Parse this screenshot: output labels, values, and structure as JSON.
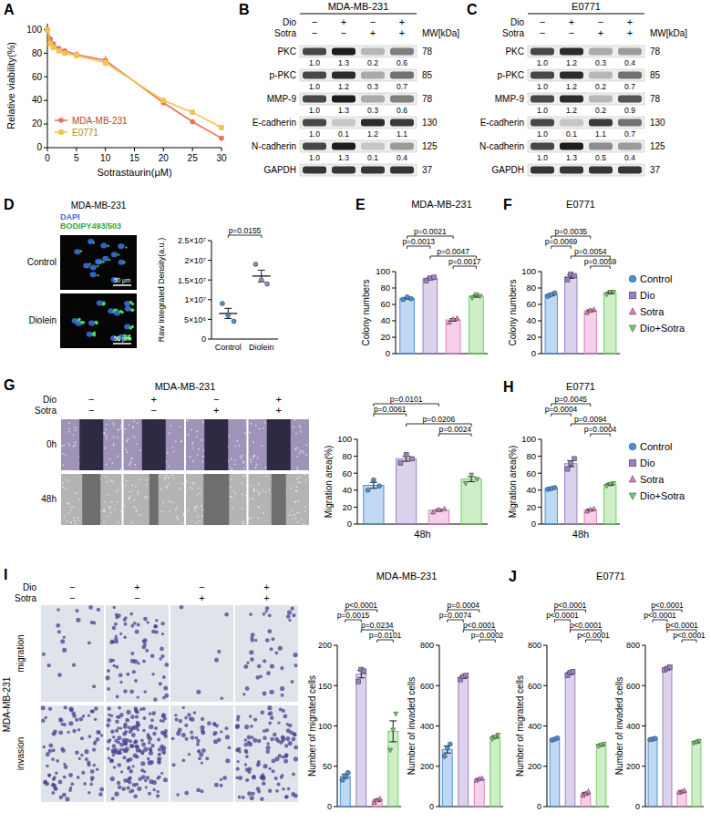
{
  "legend_entries": [
    {
      "name": "Control",
      "color": "#4a90d9",
      "marker": "circle"
    },
    {
      "name": "Dio",
      "color": "#9b7fc6",
      "marker": "square"
    },
    {
      "name": "Sotra",
      "color": "#e07ac0",
      "marker": "triangle"
    },
    {
      "name": "Dio+Sotra",
      "color": "#6fcf5e",
      "marker": "triangle-down"
    }
  ],
  "chart_data": [
    {
      "type": "line",
      "panel": "A",
      "xlabel": "Sotrastaurin(μM)",
      "ylabel": "Relative viability(%)",
      "xlim": [
        0,
        30
      ],
      "ylim": [
        0,
        105
      ],
      "xticks": [
        0,
        5,
        10,
        15,
        20,
        25,
        30
      ],
      "yticks": [
        0,
        20,
        40,
        60,
        80,
        100
      ],
      "legend": "lower left",
      "x": [
        0,
        0.5,
        1,
        2,
        3,
        5,
        10,
        20,
        25,
        30
      ],
      "series": [
        {
          "name": "MDA-MB-231",
          "color": "#e8735a",
          "marker": "circle",
          "values": [
            100,
            92,
            88,
            84,
            82,
            79,
            74,
            38,
            22,
            8
          ],
          "errors": [
            1,
            2,
            2,
            2,
            2,
            3,
            4,
            2,
            2,
            1
          ]
        },
        {
          "name": "E0771",
          "color": "#f2c14e",
          "marker": "square",
          "values": [
            100,
            88,
            85,
            82,
            80,
            78,
            72,
            40,
            30,
            17
          ],
          "errors": [
            1,
            3,
            3,
            2,
            2,
            3,
            4,
            2,
            2,
            1
          ]
        }
      ]
    },
    {
      "type": "dot",
      "marker": "circle",
      "ylabel": "Raw Integrated Density(a.u.)",
      "categories": [
        "Control",
        "Diolein"
      ],
      "colors": [
        "#4a90d9",
        "#9b7fc6"
      ],
      "values": [
        6500000,
        16000000
      ],
      "errors": [
        1300000,
        1500000
      ],
      "points": [
        [
          9000000,
          6000000,
          4500000
        ],
        [
          19000000,
          15000000,
          14000000
        ]
      ],
      "ylim": [
        0,
        25000000
      ],
      "yticks": [
        0,
        {
          "value": 5000000,
          "label": "5×10⁶"
        },
        {
          "value": 10000000,
          "label": "1×10⁷"
        },
        {
          "value": 15000000,
          "label": "1.5×10⁷"
        },
        {
          "value": 20000000,
          "label": "2×10⁷"
        },
        {
          "value": 25000000,
          "label": "2.5×10⁷"
        }
      ],
      "comparisons": [
        {
          "pair": [
            0,
            1
          ],
          "label": "p=0.0155"
        }
      ]
    },
    {
      "type": "bar",
      "panel": "E",
      "title": "MDA-MB-231",
      "ylabel": "Colony numbers",
      "tick_labels": "y",
      "categories": [
        null,
        null,
        null,
        null
      ],
      "colors": [
        "#4a90d9",
        "#9b7fc6",
        "#e07ac0",
        "#6fcf5e"
      ],
      "values": [
        67.3,
        91.3,
        41,
        70
      ],
      "errors": [
        0.9,
        1.2,
        1.5,
        1.2
      ],
      "points": [
        [
          66,
          69,
          67
        ],
        [
          89,
          92,
          93
        ],
        [
          38,
          42,
          43
        ],
        [
          68,
          72,
          70
        ]
      ],
      "ylim": [
        0,
        100
      ],
      "yticks": [
        0,
        20,
        40,
        60,
        80,
        100
      ],
      "comparisons": [
        {
          "pair": [
            0,
            2
          ],
          "label": "p=0.0021"
        },
        {
          "pair": [
            0,
            1
          ],
          "label": "p=0.0013"
        },
        {
          "pair": [
            1,
            3
          ],
          "label": "p=0.0047"
        },
        {
          "pair": [
            2,
            3
          ],
          "label": "p=0.0017"
        }
      ]
    },
    {
      "type": "bar",
      "panel": "F",
      "title": "E0771",
      "ylabel": "Colony numbers",
      "tick_labels": "y",
      "legend": "right",
      "categories": [
        null,
        null,
        null,
        null
      ],
      "colors": [
        "#4a90d9",
        "#9b7fc6",
        "#e07ac0",
        "#6fcf5e"
      ],
      "values": [
        72,
        94,
        52.3,
        74
      ],
      "errors": [
        1.2,
        2.1,
        1.2,
        1
      ],
      "points": [
        [
          70,
          72,
          74
        ],
        [
          90,
          97,
          95
        ],
        [
          50,
          53,
          54
        ],
        [
          72,
          75,
          75
        ]
      ],
      "ylim": [
        0,
        100
      ],
      "yticks": [
        0,
        20,
        40,
        60,
        80,
        100
      ],
      "comparisons": [
        {
          "pair": [
            0,
            2
          ],
          "label": "p=0.0035"
        },
        {
          "pair": [
            0,
            1
          ],
          "label": "p=0.0069"
        },
        {
          "pair": [
            1,
            3
          ],
          "label": "p=0.0054"
        },
        {
          "pair": [
            2,
            3
          ],
          "label": "p=0.0059"
        }
      ]
    },
    {
      "type": "bar",
      "ylabel": "Migration area(%)",
      "xlabel": "48h",
      "tick_labels": "y",
      "categories": [
        null,
        null,
        null,
        null
      ],
      "colors": [
        "#4a90d9",
        "#9b7fc6",
        "#e07ac0",
        "#6fcf5e"
      ],
      "values": [
        45.7,
        77,
        16.3,
        53
      ],
      "errors": [
        3.5,
        2.9,
        1.2,
        2.9
      ],
      "points": [
        [
          40,
          52,
          45
        ],
        [
          72,
          82,
          77
        ],
        [
          14,
          17,
          18
        ],
        [
          48,
          58,
          53
        ]
      ],
      "ylim": [
        0,
        100
      ],
      "yticks": [
        0,
        20,
        40,
        60,
        80,
        100
      ],
      "comparisons": [
        {
          "pair": [
            0,
            2
          ],
          "label": "p=0.0101"
        },
        {
          "pair": [
            0,
            1
          ],
          "label": "p=0.0061"
        },
        {
          "pair": [
            1,
            3
          ],
          "label": "p=0.0206"
        },
        {
          "pair": [
            2,
            3
          ],
          "label": "p=0.0024"
        }
      ]
    },
    {
      "type": "bar",
      "panel": "H",
      "title": "E0771",
      "ylabel": "Migration area(%)",
      "xlabel": "48h",
      "tick_labels": "y",
      "legend": "right",
      "categories": [
        null,
        null,
        null,
        null
      ],
      "colors": [
        "#4a90d9",
        "#9b7fc6",
        "#e07ac0",
        "#6fcf5e"
      ],
      "values": [
        42,
        71.3,
        16.7,
        46.7
      ],
      "errors": [
        0.6,
        3.5,
        0.9,
        0.9
      ],
      "points": [
        [
          41,
          42,
          43
        ],
        [
          65,
          72,
          77
        ],
        [
          15,
          17,
          18
        ],
        [
          45,
          47,
          48
        ]
      ],
      "ylim": [
        0,
        100
      ],
      "yticks": [
        0,
        20,
        40,
        60,
        80,
        100
      ],
      "comparisons": [
        {
          "pair": [
            0,
            2
          ],
          "label": "p=0.0045"
        },
        {
          "pair": [
            0,
            1
          ],
          "label": "p=0.0004"
        },
        {
          "pair": [
            1,
            3
          ],
          "label": "p=0.0094"
        },
        {
          "pair": [
            2,
            3
          ],
          "label": "p=0.0004"
        }
      ]
    },
    {
      "type": "bar",
      "title": "MDA-MB-231",
      "ylabel": "Number of migrated cells",
      "tick_labels": "y",
      "categories": [
        null,
        null,
        null,
        null
      ],
      "colors": [
        "#4a90d9",
        "#9b7fc6",
        "#e07ac0",
        "#6fcf5e"
      ],
      "values": [
        37.7,
        164.3,
        7.7,
        93.3
      ],
      "errors": [
        2.6,
        4.7,
        1.5,
        13
      ],
      "points": [
        [
          33,
          38,
          42
        ],
        [
          155,
          170,
          168
        ],
        [
          5,
          8,
          10
        ],
        [
          70,
          95,
          115
        ]
      ],
      "ylim": [
        0,
        200
      ],
      "yticks": [
        0,
        50,
        100,
        150,
        200
      ],
      "comparisons": [
        {
          "pair": [
            0,
            2
          ],
          "label": "p<0.0001"
        },
        {
          "pair": [
            0,
            1
          ],
          "label": "p=0.0015"
        },
        {
          "pair": [
            1,
            3
          ],
          "label": "p=0.0234"
        },
        {
          "pair": [
            2,
            3
          ],
          "label": "p=0.0101"
        }
      ]
    },
    {
      "type": "bar",
      "ylabel": "Number of invaded cells",
      "tick_labels": "y",
      "categories": [
        null,
        null,
        null,
        null
      ],
      "colors": [
        "#4a90d9",
        "#9b7fc6",
        "#e07ac0",
        "#6fcf5e"
      ],
      "values": [
        283.3,
        641.7,
        136,
        345
      ],
      "errors": [
        17.6,
        6,
        3,
        5.8
      ],
      "points": [
        [
          250,
          290,
          310
        ],
        [
          630,
          645,
          650
        ],
        [
          130,
          138,
          140
        ],
        [
          335,
          345,
          355
        ]
      ],
      "ylim": [
        0,
        800
      ],
      "yticks": [
        0,
        200,
        400,
        600,
        800
      ],
      "comparisons": [
        {
          "pair": [
            0,
            2
          ],
          "label": "p=0.0004"
        },
        {
          "pair": [
            0,
            1
          ],
          "label": "p=0.0074"
        },
        {
          "pair": [
            1,
            3
          ],
          "label": "p<0.0001"
        },
        {
          "pair": [
            2,
            3
          ],
          "label": "p=0.0002"
        }
      ]
    },
    {
      "type": "bar",
      "panel": "J",
      "title": "E0771",
      "ylabel": "Number of migrated cells",
      "tick_labels": "y",
      "categories": [
        null,
        null,
        null,
        null
      ],
      "colors": [
        "#4a90d9",
        "#9b7fc6",
        "#e07ac0",
        "#6fcf5e"
      ],
      "values": [
        335,
        661.7,
        65,
        305
      ],
      "errors": [
        2.9,
        6,
        5.8,
        2.9
      ],
      "points": [
        [
          330,
          335,
          340
        ],
        [
          650,
          665,
          670
        ],
        [
          55,
          65,
          75
        ],
        [
          300,
          305,
          310
        ]
      ],
      "ylim": [
        0,
        800
      ],
      "yticks": [
        0,
        200,
        400,
        600,
        800
      ],
      "comparisons": [
        {
          "pair": [
            0,
            2
          ],
          "label": "p<0.0001"
        },
        {
          "pair": [
            0,
            1
          ],
          "label": "p<0.0001"
        },
        {
          "pair": [
            1,
            3
          ],
          "label": "p<0.0001"
        },
        {
          "pair": [
            2,
            3
          ],
          "label": "p<0.0001"
        }
      ]
    },
    {
      "type": "bar",
      "ylabel": "Number of invaded cells",
      "tick_labels": "y",
      "categories": [
        null,
        null,
        null,
        null
      ],
      "colors": [
        "#4a90d9",
        "#9b7fc6",
        "#e07ac0",
        "#6fcf5e"
      ],
      "values": [
        335,
        685,
        75,
        320
      ],
      "errors": [
        1.7,
        4,
        2.9,
        2.9
      ],
      "points": [
        [
          332,
          335,
          338
        ],
        [
          678,
          685,
          692
        ],
        [
          70,
          75,
          80
        ],
        [
          315,
          320,
          325
        ]
      ],
      "ylim": [
        0,
        800
      ],
      "yticks": [
        0,
        200,
        400,
        600,
        800
      ],
      "comparisons": [
        {
          "pair": [
            0,
            2
          ],
          "label": "p<0.0001"
        },
        {
          "pair": [
            0,
            1
          ],
          "label": "p<0.0001"
        },
        {
          "pair": [
            1,
            3
          ],
          "label": "p<0.0001"
        },
        {
          "pair": [
            2,
            3
          ],
          "label": "p<0.0001"
        }
      ]
    }
  ],
  "blots": [
    {
      "panel": "B",
      "title": "MDA-MB-231",
      "mw_label": "MW[kDa]",
      "treatments": [
        {
          "name": "Dio",
          "signs": [
            "−",
            "+",
            "−",
            "+"
          ]
        },
        {
          "name": "Sotra",
          "signs": [
            "−",
            "−",
            "+",
            "+"
          ]
        }
      ],
      "rows": [
        {
          "protein": "PKC",
          "mw": 78,
          "values": [
            1.0,
            1.3,
            0.2,
            0.6
          ],
          "value_labels": [
            "1.0",
            "1.3",
            "0.2",
            "0.6"
          ]
        },
        {
          "protein": "p-PKC",
          "mw": 85,
          "values": [
            1.0,
            1.2,
            0.3,
            0.7
          ],
          "value_labels": [
            "1.0",
            "1.2",
            "0.3",
            "0.7"
          ]
        },
        {
          "protein": "MMP-9",
          "mw": 78,
          "values": [
            1.0,
            1.3,
            0.3,
            0.6
          ],
          "value_labels": [
            "1.0",
            "1.3",
            "0.3",
            "0.6"
          ]
        },
        {
          "protein": "E-cadherin",
          "mw": 130,
          "values": [
            1.0,
            0.1,
            1.2,
            1.1
          ],
          "value_labels": [
            "1.0",
            "0.1",
            "1.2",
            "1.1"
          ]
        },
        {
          "protein": "N-cadherin",
          "mw": 125,
          "values": [
            1.0,
            1.3,
            0.1,
            0.4
          ],
          "value_labels": [
            "1.0",
            "1.3",
            "0.1",
            "0.4"
          ]
        },
        {
          "protein": "GAPDH",
          "mw": 37
        }
      ]
    },
    {
      "panel": "C",
      "title": "E0771",
      "mw_label": "MW[kDa]",
      "treatments": [
        {
          "name": "Dio",
          "signs": [
            "−",
            "+",
            "−",
            "+"
          ]
        },
        {
          "name": "Sotra",
          "signs": [
            "−",
            "−",
            "+",
            "+"
          ]
        }
      ],
      "rows": [
        {
          "protein": "PKC",
          "mw": 78,
          "values": [
            1.0,
            1.2,
            0.3,
            0.4
          ],
          "value_labels": [
            "1.0",
            "1.2",
            "0.3",
            "0.4"
          ]
        },
        {
          "protein": "p-PKC",
          "mw": 85,
          "values": [
            1.0,
            1.2,
            0.2,
            0.7
          ],
          "value_labels": [
            "1.0",
            "1.2",
            "0.2",
            "0.7"
          ]
        },
        {
          "protein": "MMP-9",
          "mw": 78,
          "values": [
            1.0,
            1.2,
            0.2,
            0.9
          ],
          "value_labels": [
            "1.0",
            "1.2",
            "0.2",
            "0.9"
          ]
        },
        {
          "protein": "E-cadherin",
          "mw": 130,
          "values": [
            1.0,
            0.1,
            1.1,
            0.7
          ],
          "value_labels": [
            "1.0",
            "0.1",
            "1.1",
            "0.7"
          ]
        },
        {
          "protein": "N-cadherin",
          "mw": 125,
          "values": [
            1.0,
            1.3,
            0.5,
            0.4
          ],
          "value_labels": [
            "1.0",
            "1.3",
            "0.5",
            "0.4"
          ]
        },
        {
          "protein": "GAPDH",
          "mw": 37
        }
      ]
    }
  ],
  "fluorescence": {
    "panel": "D",
    "title": "MDA-MB-231",
    "channels": [
      {
        "name": "DAPI",
        "color": "#3a6fd8"
      },
      {
        "name": "BODIPY493/503",
        "color": "#2eaa3a"
      }
    ],
    "rows": [
      "Control",
      "Diolein"
    ],
    "scale_bar": "50 μm"
  },
  "scratch": {
    "panel": "G",
    "title": "MDA-MB-231",
    "treatments": [
      {
        "name": "Dio",
        "signs": [
          "−",
          "+",
          "−",
          "+"
        ]
      },
      {
        "name": "Sotra",
        "signs": [
          "−",
          "−",
          "+",
          "+"
        ]
      }
    ],
    "rows": [
      "0h",
      "48h"
    ]
  },
  "transwell": {
    "panel": "I",
    "cell_line": "MDA-MB-231",
    "treatments": [
      {
        "name": "Dio",
        "signs": [
          "−",
          "+",
          "−",
          "+"
        ]
      },
      {
        "name": "Sotra",
        "signs": [
          "−",
          "−",
          "+",
          "+"
        ]
      }
    ],
    "rows": [
      "migration",
      "invasion"
    ]
  }
}
